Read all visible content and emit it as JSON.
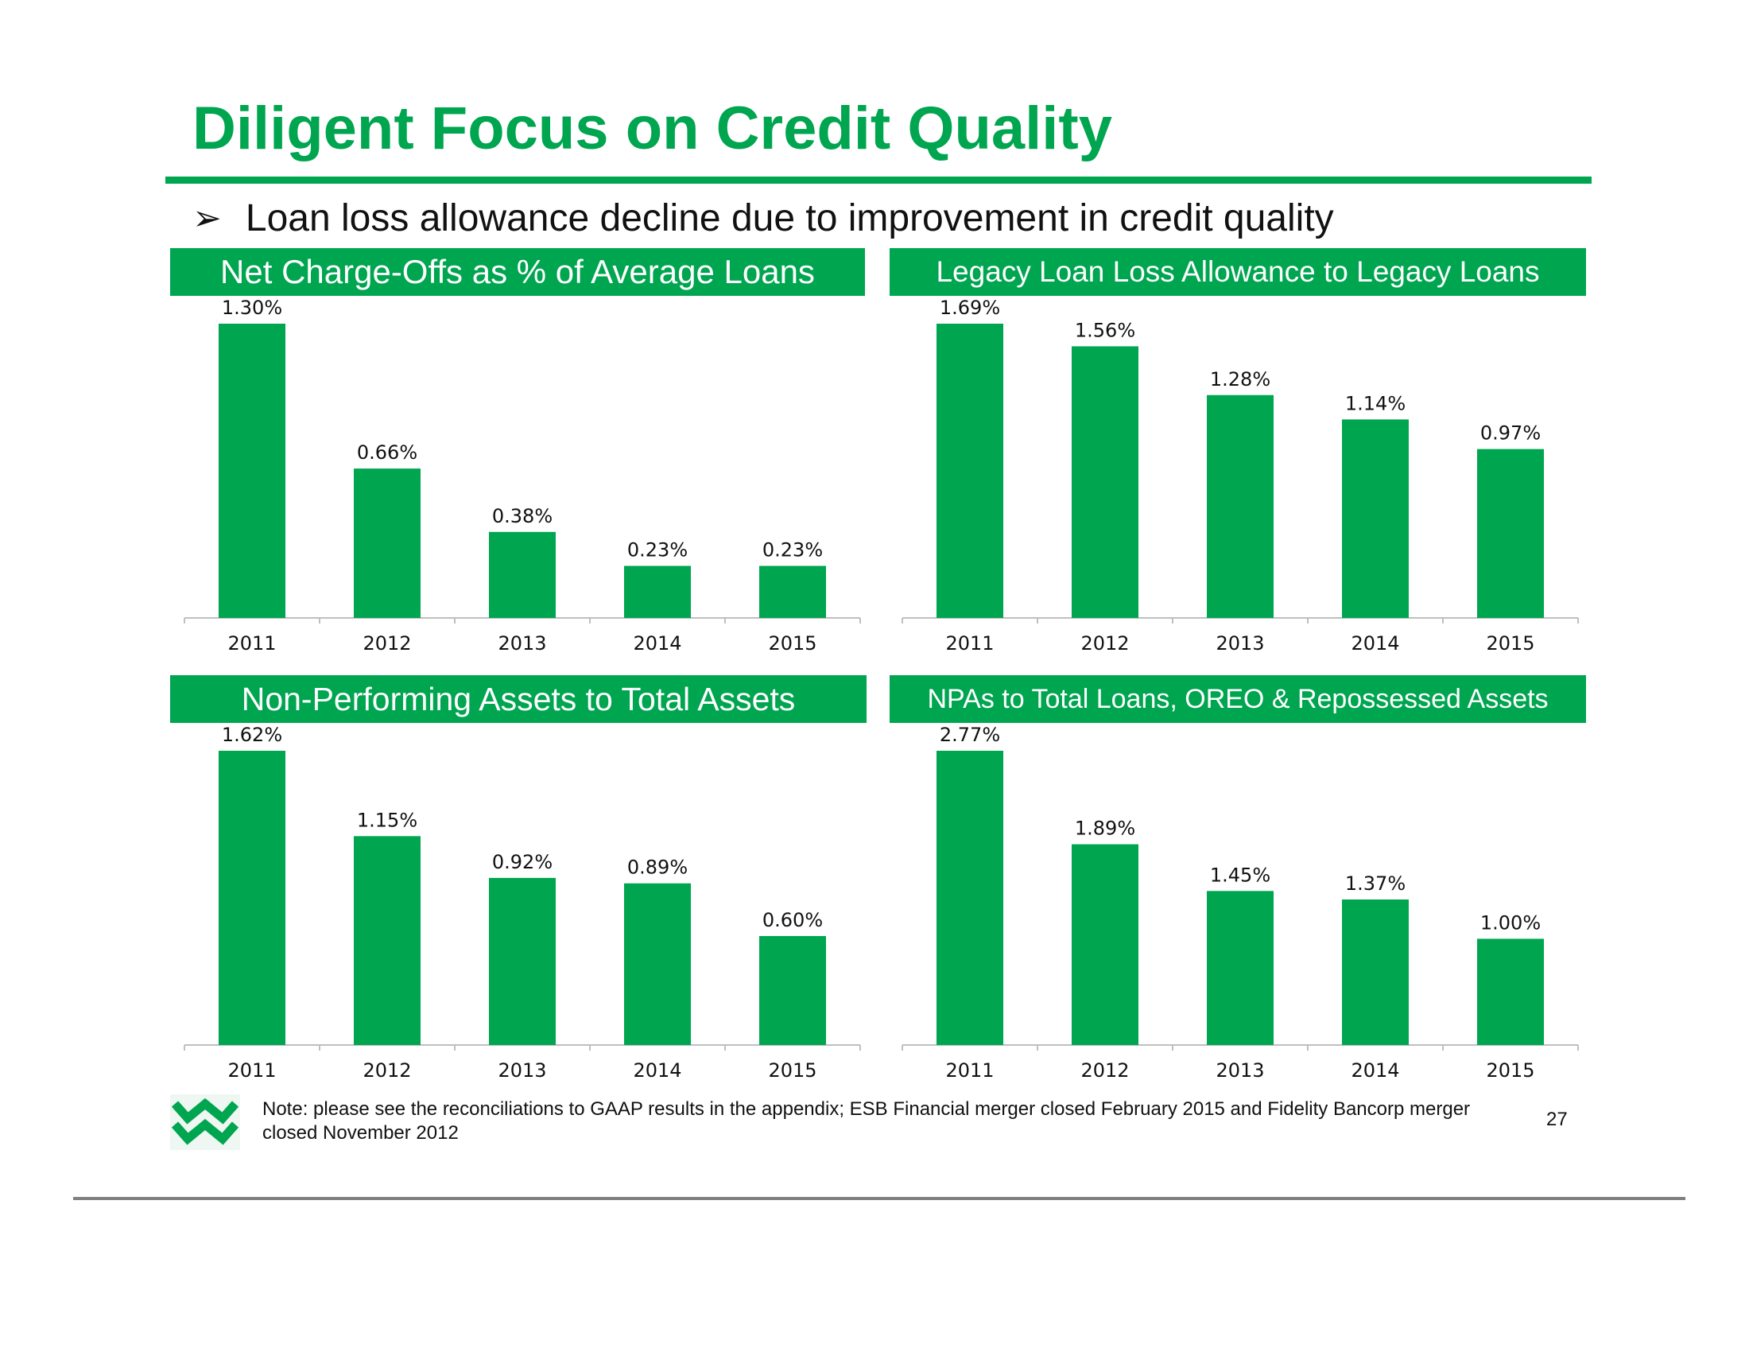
{
  "title": "Diligent Focus on Credit Quality",
  "bullet": {
    "arrow": "➢",
    "text": "Loan loss allowance decline due to improvement in credit quality"
  },
  "colors": {
    "brand_green": "#00a550",
    "axis": "#bfbfbf",
    "text": "#111111",
    "rule": "#808080"
  },
  "icons": {
    "logo": "wesbanco-w-logo-icon"
  },
  "chart_data": [
    {
      "type": "bar",
      "title": "Net Charge-Offs as % of Average Loans",
      "categories": [
        "2011",
        "2012",
        "2013",
        "2014",
        "2015"
      ],
      "values": [
        1.3,
        0.66,
        0.38,
        0.23,
        0.23
      ],
      "data_labels": [
        "1.30%",
        "0.66%",
        "0.38%",
        "0.23%",
        "0.23%"
      ],
      "ylim": [
        0,
        1.3
      ],
      "xlabel": "",
      "ylabel": "",
      "grid": false,
      "color": "#00a550"
    },
    {
      "type": "bar",
      "title": "Legacy Loan Loss Allowance to Legacy Loans",
      "categories": [
        "2011",
        "2012",
        "2013",
        "2014",
        "2015"
      ],
      "values": [
        1.69,
        1.56,
        1.28,
        1.14,
        0.97
      ],
      "data_labels": [
        "1.69%",
        "1.56%",
        "1.28%",
        "1.14%",
        "0.97%"
      ],
      "ylim": [
        0,
        1.69
      ],
      "xlabel": "",
      "ylabel": "",
      "grid": false,
      "color": "#00a550"
    },
    {
      "type": "bar",
      "title": "Non-Performing Assets to Total Assets",
      "categories": [
        "2011",
        "2012",
        "2013",
        "2014",
        "2015"
      ],
      "values": [
        1.62,
        1.15,
        0.92,
        0.89,
        0.6
      ],
      "data_labels": [
        "1.62%",
        "1.15%",
        "0.92%",
        "0.89%",
        "0.60%"
      ],
      "ylim": [
        0,
        1.62
      ],
      "xlabel": "",
      "ylabel": "",
      "grid": false,
      "color": "#00a550"
    },
    {
      "type": "bar",
      "title": "NPAs to Total Loans, OREO & Repossessed Assets",
      "categories": [
        "2011",
        "2012",
        "2013",
        "2014",
        "2015"
      ],
      "values": [
        2.77,
        1.89,
        1.45,
        1.37,
        1.0
      ],
      "data_labels": [
        "2.77%",
        "1.89%",
        "1.45%",
        "1.37%",
        "1.00%"
      ],
      "ylim": [
        0,
        2.77
      ],
      "xlabel": "",
      "ylabel": "",
      "grid": false,
      "color": "#00a550"
    }
  ],
  "footer": {
    "note": "Note: please see the reconciliations to GAAP results in the appendix; ESB Financial merger closed February 2015 and Fidelity Bancorp merger closed November 2012",
    "page_number": "27"
  }
}
